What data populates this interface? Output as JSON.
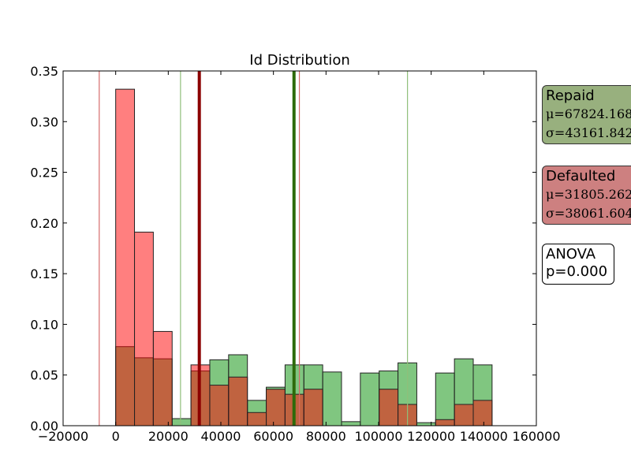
{
  "chart_data": {
    "type": "histogram",
    "title": "Id Distribution",
    "xlabel": "",
    "ylabel": "",
    "xlim": [
      -20000,
      160000
    ],
    "ylim": [
      0,
      0.35
    ],
    "xticks": [
      -20000,
      0,
      20000,
      40000,
      60000,
      80000,
      100000,
      120000,
      140000,
      160000
    ],
    "yticks": [
      0.0,
      0.05,
      0.1,
      0.15,
      0.2,
      0.25,
      0.3,
      0.35
    ],
    "xtick_labels": [
      "−20000",
      "0",
      "20000",
      "40000",
      "60000",
      "80000",
      "100000",
      "120000",
      "140000",
      "160000"
    ],
    "ytick_labels": [
      "0.00",
      "0.05",
      "0.10",
      "0.15",
      "0.20",
      "0.25",
      "0.30",
      "0.35"
    ],
    "bin_width": 7158,
    "series": [
      {
        "name": "Repaid",
        "color": "#2ca02c",
        "bin_starts": [
          0,
          7158,
          14316,
          21474,
          28632,
          35790,
          42948,
          50106,
          57264,
          64422,
          71580,
          78738,
          85896,
          93054,
          100212,
          107370,
          114528,
          121686,
          128844,
          136002
        ],
        "values": [
          0.078,
          0.067,
          0.066,
          0.007,
          0.054,
          0.065,
          0.07,
          0.025,
          0.038,
          0.06,
          0.06,
          0.053,
          0.004,
          0.052,
          0.054,
          0.062,
          0.003,
          0.052,
          0.066,
          0.06
        ]
      },
      {
        "name": "Defaulted",
        "color": "#ff0000",
        "bin_starts": [
          0,
          7158,
          14316,
          21474,
          28632,
          35790,
          42948,
          50106,
          57264,
          64422,
          71580,
          78738,
          85896,
          93054,
          100212,
          107370,
          114528,
          121686,
          128844,
          136002
        ],
        "values": [
          0.332,
          0.191,
          0.093,
          0.0,
          0.06,
          0.04,
          0.048,
          0.013,
          0.036,
          0.031,
          0.036,
          0.0,
          0.0,
          0.0,
          0.036,
          0.021,
          0.0,
          0.006,
          0.021,
          0.025
        ]
      }
    ],
    "vlines": [
      {
        "series": "Defaulted",
        "kind": "mean",
        "x": 31805.262,
        "color": "#8b0000"
      },
      {
        "series": "Repaid",
        "kind": "mean",
        "x": 67824.168,
        "color": "#2d6a0a"
      },
      {
        "series": "Defaulted",
        "kind": "mean-sd",
        "x": -6256.342,
        "color": "#d66a6a"
      },
      {
        "series": "Defaulted",
        "kind": "mean+sd",
        "x": 69866.866,
        "color": "#d66a6a"
      },
      {
        "series": "Repaid",
        "kind": "mean-sd",
        "x": 24662.326,
        "color": "#8fbf7a"
      },
      {
        "series": "Repaid",
        "kind": "mean+sd",
        "x": 110986.01,
        "color": "#8fbf7a"
      }
    ]
  },
  "legend": {
    "repaid": {
      "label": "Repaid",
      "mu": "μ=67824.168",
      "sigma": "σ=43161.842",
      "color": "#98b07e"
    },
    "defaulted": {
      "label": "Defaulted",
      "mu": "μ=31805.262",
      "sigma": "σ=38061.604",
      "color": "#cd8080"
    },
    "anova": {
      "line1": "ANOVA",
      "line2": "p=0.000"
    }
  }
}
